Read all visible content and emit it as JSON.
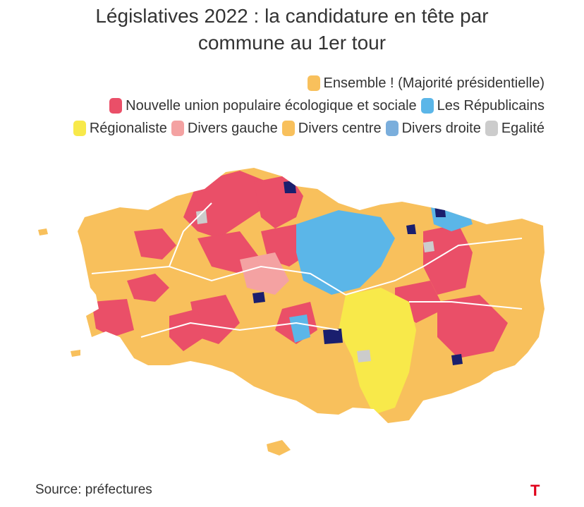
{
  "title": {
    "line1": "Législatives 2022 : la candidature en tête par",
    "line2": "commune au 1er tour"
  },
  "legend": [
    {
      "label": "Ensemble ! (Majorité présidentielle)",
      "color": "#f8c05c"
    },
    {
      "label": "Nouvelle union populaire écologique et sociale",
      "color": "#ea4f68"
    },
    {
      "label": "Les Républicains",
      "color": "#5bb6e8"
    },
    {
      "label": "Régionaliste",
      "color": "#f8e94a"
    },
    {
      "label": "Divers gauche",
      "color": "#f4a2a2"
    },
    {
      "label": "Divers centre",
      "color": "#f8c05c"
    },
    {
      "label": "Divers droite",
      "color": "#7aaedc"
    },
    {
      "label": "Egalité",
      "color": "#cccccc"
    }
  ],
  "colors": {
    "ensemble": "#f8c05c",
    "nupes": "#ea4f68",
    "lr": "#5bb6e8",
    "regionaliste": "#f8e94a",
    "divers_gauche": "#f4a2a2",
    "divers_droite": "#7aaedc",
    "egalite": "#cccccc",
    "extra_dark": "#1a1f6e"
  },
  "source": "Source: préfectures",
  "logo": "T"
}
